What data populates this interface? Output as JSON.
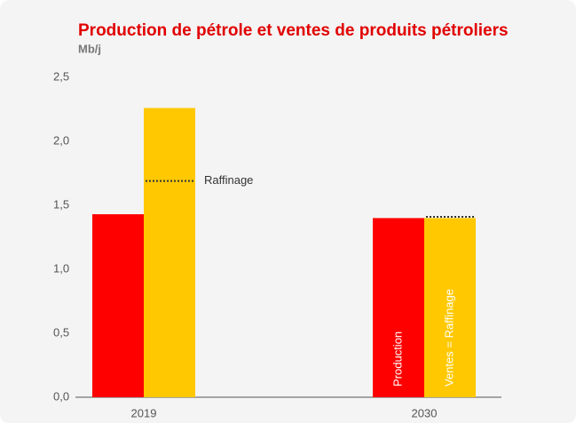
{
  "chart_data": {
    "type": "bar",
    "title": "Production de pétrole et ventes de produits pétroliers",
    "y_label": "Mb/j",
    "categories": [
      "2019",
      "2030"
    ],
    "series": [
      {
        "name": "Production",
        "color": "#ff0000",
        "values": [
          1.43,
          1.4
        ]
      },
      {
        "name": "Ventes = Raffinage",
        "color": "#ffc800",
        "values": [
          2.26,
          1.4
        ]
      },
      {
        "name": "Raffinage",
        "color": "#333333",
        "style": "dotted",
        "values": [
          1.69,
          1.41
        ]
      }
    ],
    "ylim": [
      0,
      2.5
    ],
    "yticks": [
      {
        "value": 0,
        "label": "0,0"
      },
      {
        "value": 0.5,
        "label": "0,5"
      },
      {
        "value": 1,
        "label": "1,0"
      },
      {
        "value": 1.5,
        "label": "1,5"
      },
      {
        "value": 2,
        "label": "2,0"
      },
      {
        "value": 2.5,
        "label": "2,5"
      }
    ]
  }
}
